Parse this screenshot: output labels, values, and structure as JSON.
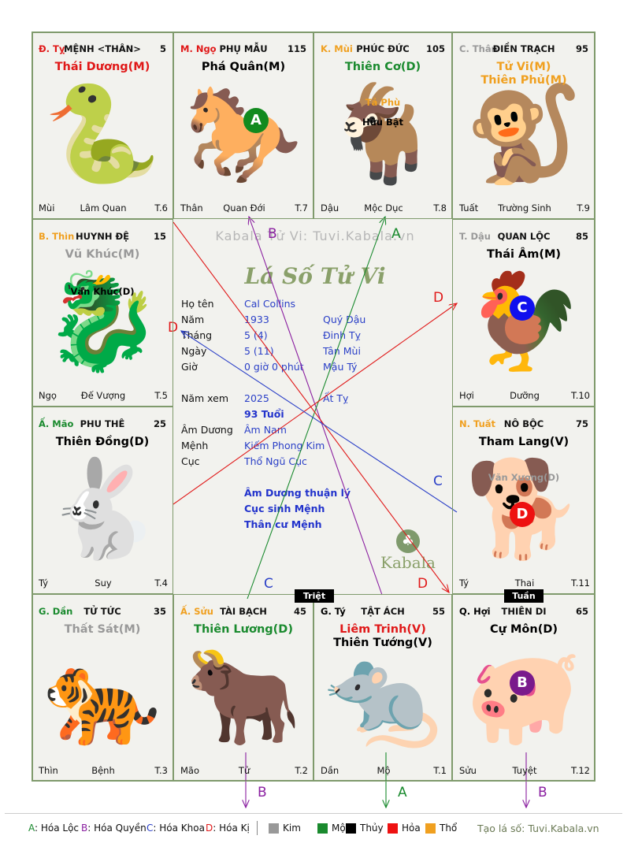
{
  "colors": {
    "kim": "#999999",
    "moc": "#1a8a2e",
    "thuy": "#000000",
    "hoa": "#ee1111",
    "tho": "#f0a020",
    "red": "#e01818",
    "orange": "#f0a020",
    "green": "#1a8a2e",
    "gray": "#999999",
    "blue": "#2a3fc7",
    "purple": "#8a1fa0"
  },
  "cells": [
    {
      "id": "ty",
      "stem": "Đ. Tỵ",
      "stem_color": "red",
      "palace": "MỆNH <THÂN>",
      "num": "5",
      "main": [
        {
          "text": "Thái Dương(M)",
          "color": "red"
        }
      ],
      "minor": [],
      "foot_left": "Mùi",
      "foot_mid": "Lâm Quan",
      "foot_right": "T.6",
      "icon": "snake-icon",
      "glyph": "🐍"
    },
    {
      "id": "ngo",
      "stem": "M. Ngọ",
      "stem_color": "red",
      "palace": "PHỤ MẪU",
      "num": "115",
      "main": [
        {
          "text": "Phá Quân(M)",
          "color": "thuy"
        }
      ],
      "minor": [],
      "foot_left": "Thân",
      "foot_mid": "Quan Đới",
      "foot_right": "T.7",
      "icon": "horse-icon",
      "glyph": "🐎"
    },
    {
      "id": "mui",
      "stem": "K. Mùi",
      "stem_color": "orange",
      "palace": "PHÚC ĐỨC",
      "num": "105",
      "main": [
        {
          "text": "Thiên Cơ(D)",
          "color": "green"
        }
      ],
      "minor": [
        {
          "text": "Tả Phù",
          "color": "orange"
        },
        {
          "text": "Hữu Bật",
          "color": "thuy"
        }
      ],
      "foot_left": "Dậu",
      "foot_mid": "Mộc Dục",
      "foot_right": "T.8",
      "icon": "goat-icon",
      "glyph": "🐐"
    },
    {
      "id": "than",
      "stem": "C. Thân",
      "stem_color": "gray",
      "palace": "ĐIỀN TRẠCH",
      "num": "95",
      "main": [
        {
          "text": "Tử Vi(M)",
          "color": "orange"
        },
        {
          "text": "Thiên Phủ(M)",
          "color": "orange"
        }
      ],
      "minor": [],
      "foot_left": "Tuất",
      "foot_mid": "Trường Sinh",
      "foot_right": "T.9",
      "icon": "monkey-icon",
      "glyph": "🐒"
    },
    {
      "id": "thin",
      "stem": "B. Thìn",
      "stem_color": "orange",
      "palace": "HUYNH ĐỆ",
      "num": "15",
      "main": [
        {
          "text": "Vũ Khúc(M)",
          "color": "gray"
        }
      ],
      "minor": [
        {
          "text": "Văn Khúc(D)",
          "color": "thuy"
        }
      ],
      "foot_left": "Ngọ",
      "foot_mid": "Đế Vượng",
      "foot_right": "T.5",
      "icon": "dragon-icon",
      "glyph": "🐉"
    },
    {
      "id": "dau",
      "stem": "T. Dậu",
      "stem_color": "gray",
      "palace": "QUAN LỘC",
      "num": "85",
      "main": [
        {
          "text": "Thái Âm(M)",
          "color": "thuy"
        }
      ],
      "minor": [],
      "foot_left": "Hợi",
      "foot_mid": "Dưỡng",
      "foot_right": "T.10",
      "icon": "rooster-icon",
      "glyph": "🐓"
    },
    {
      "id": "mao",
      "stem": "Ấ. Mão",
      "stem_color": "green",
      "palace": "PHU THÊ",
      "num": "25",
      "main": [
        {
          "text": "Thiên Đồng(D)",
          "color": "thuy"
        }
      ],
      "minor": [],
      "foot_left": "Tý",
      "foot_mid": "Suy",
      "foot_right": "T.4",
      "icon": "rabbit-icon",
      "glyph": "🐇"
    },
    {
      "id": "tuat",
      "stem": "N. Tuất",
      "stem_color": "orange",
      "palace": "NÔ BỘC",
      "num": "75",
      "main": [
        {
          "text": "Tham Lang(V)",
          "color": "thuy"
        }
      ],
      "minor": [
        {
          "text": "Văn Xương(D)",
          "color": "gray"
        }
      ],
      "foot_left": "Tý",
      "foot_mid": "Thai",
      "foot_right": "T.11",
      "icon": "dog-icon",
      "glyph": "🐕"
    },
    {
      "id": "dan",
      "stem": "G. Dần",
      "stem_color": "green",
      "palace": "TỬ TỨC",
      "num": "35",
      "main": [
        {
          "text": "Thất Sát(M)",
          "color": "gray"
        }
      ],
      "minor": [],
      "foot_left": "Thìn",
      "foot_mid": "Bệnh",
      "foot_right": "T.3",
      "icon": "tiger-icon",
      "glyph": "🐅"
    },
    {
      "id": "suu",
      "stem": "Ấ. Sửu",
      "stem_color": "orange",
      "palace": "TÀI BẠCH",
      "num": "45",
      "main": [
        {
          "text": "Thiên Lương(D)",
          "color": "green"
        }
      ],
      "minor": [],
      "foot_left": "Mão",
      "foot_mid": "Tử",
      "foot_right": "T.2",
      "icon": "ox-icon",
      "glyph": "🐂"
    },
    {
      "id": "tyy",
      "stem": "G. Tý",
      "stem_color": "thuy",
      "palace": "TẬT ÁCH",
      "num": "55",
      "main": [
        {
          "text": "Liêm Trinh(V)",
          "color": "red"
        },
        {
          "text": "Thiên Tướng(V)",
          "color": "thuy"
        }
      ],
      "minor": [],
      "foot_left": "Dần",
      "foot_mid": "Mộ",
      "foot_right": "T.1",
      "icon": "rat-icon",
      "glyph": "🐀"
    },
    {
      "id": "hoi",
      "stem": "Q. Hợi",
      "stem_color": "thuy",
      "palace": "THIÊN DI",
      "num": "65",
      "main": [
        {
          "text": "Cự Môn(D)",
          "color": "thuy"
        }
      ],
      "minor": [],
      "foot_left": "Sửu",
      "foot_mid": "Tuyệt",
      "foot_right": "T.12",
      "icon": "pig-icon",
      "glyph": "🐖"
    }
  ],
  "badges": {
    "ngo": "A",
    "dau": "C",
    "tuat": "D",
    "hoi": "B"
  },
  "badge_colors": {
    "A": "#128a1e",
    "B": "#7a1a8c",
    "C": "#1010ee",
    "D": "#ee1111"
  },
  "tags": {
    "triet": "Triệt",
    "tuan": "Tuần"
  },
  "center": {
    "watermark": "Kabala Tử Vi: Tuvi.Kabala.vn",
    "script_title": "Lá Số Tử Vi",
    "rows": [
      {
        "label": "Họ tên",
        "v1": "Cal Collins",
        "v2": ""
      },
      {
        "label": "Năm",
        "v1": "1933",
        "v2": "Quý Dậu"
      },
      {
        "label": "Tháng",
        "v1": "5  (4)",
        "v2": "Đinh Tỵ"
      },
      {
        "label": "Ngày",
        "v1": "5  (11)",
        "v2": "Tân Mùi"
      },
      {
        "label": "Giờ",
        "v1": "0 giờ 0 phút",
        "v2": "Mậu Tý"
      }
    ],
    "year_label": "Năm xem",
    "year_value": "2025",
    "year_can": "Ất Tỵ",
    "age": "93 Tuổi",
    "rows2": [
      {
        "label": "Âm Dương",
        "v1": "Âm Nam"
      },
      {
        "label": "Mệnh",
        "v1": "Kiếm Phong Kim"
      },
      {
        "label": "Cục",
        "v1": "Thổ Ngũ Cục"
      }
    ],
    "notes": [
      "Âm Dương thuận lý",
      "Cục sinh Mệnh",
      "Thân cư Mệnh"
    ],
    "logo_word": "Kabala"
  },
  "arrow_labels": [
    {
      "text": "B",
      "color": "purple"
    },
    {
      "text": "A",
      "color": "green"
    },
    {
      "text": "D",
      "color": "red"
    },
    {
      "text": "D",
      "color": "red"
    },
    {
      "text": "C",
      "color": "blue"
    },
    {
      "text": "C",
      "color": "blue"
    },
    {
      "text": "D",
      "color": "red"
    },
    {
      "text": "B",
      "color": "purple"
    },
    {
      "text": "A",
      "color": "green"
    },
    {
      "text": "B",
      "color": "purple"
    }
  ],
  "legend": {
    "items": [
      {
        "key": "A",
        "label": ": Hóa Lộc",
        "color": "green"
      },
      {
        "key": "B",
        "label": ": Hóa Quyền",
        "color": "purple"
      },
      {
        "key": "C",
        "label": ": Hóa Khoa",
        "color": "blue"
      },
      {
        "key": "D",
        "label": ": Hóa Kị",
        "color": "red"
      }
    ],
    "elements": [
      {
        "label": "Kim",
        "color": "kim"
      },
      {
        "label": "Mộc",
        "color": "moc"
      },
      {
        "label": "Thủy",
        "color": "thuy"
      },
      {
        "label": "Hỏa",
        "color": "hoa"
      },
      {
        "label": "Thổ",
        "color": "tho"
      }
    ],
    "site": "Tạo lá số: Tuvi.Kabala.vn"
  }
}
